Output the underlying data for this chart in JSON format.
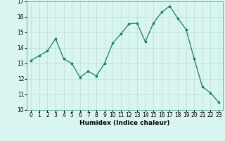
{
  "x": [
    0,
    1,
    2,
    3,
    4,
    5,
    6,
    7,
    8,
    9,
    10,
    11,
    12,
    13,
    14,
    15,
    16,
    17,
    18,
    19,
    20,
    21,
    22,
    23
  ],
  "y": [
    13.2,
    13.5,
    13.8,
    14.6,
    13.3,
    13.0,
    12.1,
    12.5,
    12.2,
    13.0,
    14.3,
    14.9,
    15.55,
    15.6,
    14.4,
    15.6,
    16.3,
    16.7,
    15.9,
    15.2,
    13.3,
    11.5,
    11.1,
    10.5
  ],
  "line_color": "#1a7a6e",
  "marker": "s",
  "marker_size": 2,
  "bg_color": "#d8f5f0",
  "grid_color": "#b8ddd8",
  "xlabel": "Humidex (Indice chaleur)",
  "ylim": [
    10,
    17
  ],
  "xlim": [
    -0.5,
    23.5
  ],
  "yticks": [
    10,
    11,
    12,
    13,
    14,
    15,
    16,
    17
  ],
  "xticks": [
    0,
    1,
    2,
    3,
    4,
    5,
    6,
    7,
    8,
    9,
    10,
    11,
    12,
    13,
    14,
    15,
    16,
    17,
    18,
    19,
    20,
    21,
    22,
    23
  ],
  "tick_fontsize": 5.5,
  "label_fontsize": 6.5,
  "linewidth": 0.9
}
